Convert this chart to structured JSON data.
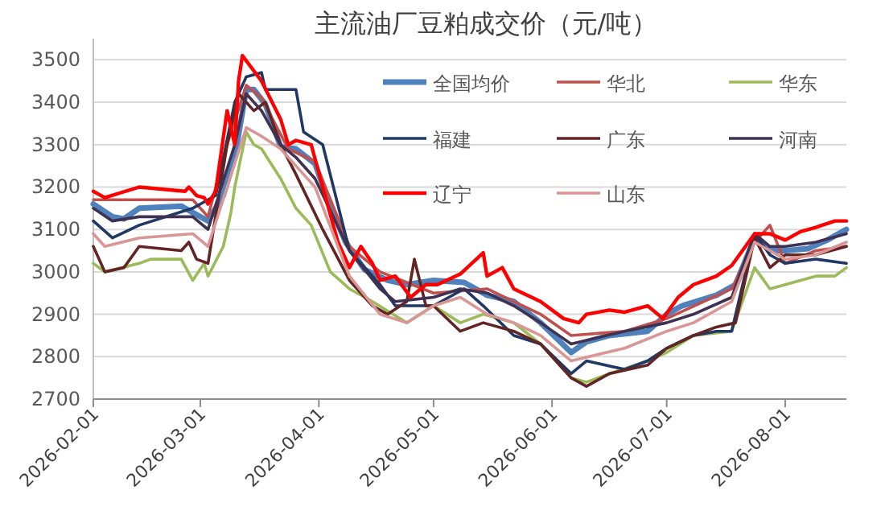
{
  "chart_data": {
    "type": "line",
    "title": "主流油厂豆粕成交价（元/吨）",
    "xlim": [
      "2026-02-01",
      "2026-08-17"
    ],
    "xticks": [
      "2026-02-01",
      "2026-03-01",
      "2026-04-01",
      "2026-05-01",
      "2026-06-01",
      "2026-07-01",
      "2026-08-01"
    ],
    "ylim": [
      2700,
      3550
    ],
    "yticks": [
      2700,
      2800,
      2900,
      3000,
      3100,
      3200,
      3300,
      3400,
      3500
    ],
    "grid": "y",
    "legend": "top right",
    "marker": "none",
    "line_style": "solid",
    "series": [
      {
        "name": "全国均价",
        "color": "#4f81bd",
        "x": [
          "2026-02-01",
          "2026-02-06",
          "2026-02-09",
          "2026-02-13",
          "2026-02-24",
          "2026-02-27",
          "2026-03-03",
          "2026-03-07",
          "2026-03-10",
          "2026-03-13",
          "2026-03-15",
          "2026-03-18",
          "2026-03-22",
          "2026-03-26",
          "2026-03-31",
          "2026-04-04",
          "2026-04-08",
          "2026-04-13",
          "2026-04-19",
          "2026-04-24",
          "2026-05-01",
          "2026-05-09",
          "2026-05-15",
          "2026-05-22",
          "2026-05-29",
          "2026-06-06",
          "2026-06-10",
          "2026-06-16",
          "2026-06-26",
          "2026-07-01",
          "2026-07-05",
          "2026-07-14",
          "2026-07-19",
          "2026-07-24",
          "2026-07-28",
          "2026-08-01",
          "2026-08-07",
          "2026-08-12",
          "2026-08-17"
        ],
        "values": [
          3160,
          3130,
          3125,
          3150,
          3155,
          3140,
          3120,
          3180,
          3270,
          3430,
          3430,
          3395,
          3295,
          3290,
          3255,
          3155,
          3070,
          3005,
          2980,
          2970,
          2980,
          2975,
          2945,
          2930,
          2880,
          2810,
          2835,
          2850,
          2860,
          2900,
          2920,
          2945,
          2970,
          3080,
          3050,
          3050,
          3055,
          3075,
          3100
        ]
      },
      {
        "name": "华北",
        "color": "#c0504d",
        "x": [
          "2026-02-01",
          "2026-02-13",
          "2026-02-27",
          "2026-03-03",
          "2026-03-08",
          "2026-03-13",
          "2026-03-17",
          "2026-03-24",
          "2026-03-31",
          "2026-04-09",
          "2026-04-17",
          "2026-05-01",
          "2026-05-15",
          "2026-05-29",
          "2026-06-06",
          "2026-06-20",
          "2026-07-01",
          "2026-07-18",
          "2026-07-24",
          "2026-07-28",
          "2026-08-01",
          "2026-08-09",
          "2026-08-17"
        ],
        "values": [
          3170,
          3170,
          3170,
          3130,
          3300,
          3440,
          3410,
          3290,
          3260,
          3060,
          3000,
          2950,
          2960,
          2900,
          2850,
          2860,
          2890,
          2960,
          3070,
          3110,
          3020,
          3050,
          3060
        ]
      },
      {
        "name": "华东",
        "color": "#9bbb59",
        "x": [
          "2026-02-01",
          "2026-02-04",
          "2026-02-13",
          "2026-02-16",
          "2026-02-24",
          "2026-02-27",
          "2026-03-02",
          "2026-03-03",
          "2026-03-07",
          "2026-03-09",
          "2026-03-10",
          "2026-03-13",
          "2026-03-15",
          "2026-03-17",
          "2026-03-22",
          "2026-03-26",
          "2026-03-30",
          "2026-04-04",
          "2026-04-09",
          "2026-04-15",
          "2026-04-24",
          "2026-05-01",
          "2026-05-08",
          "2026-05-14",
          "2026-05-22",
          "2026-05-29",
          "2026-06-06",
          "2026-06-10",
          "2026-06-16",
          "2026-06-26",
          "2026-07-01",
          "2026-07-08",
          "2026-07-18",
          "2026-07-24",
          "2026-07-28",
          "2026-08-01",
          "2026-08-09",
          "2026-08-14",
          "2026-08-17"
        ],
        "values": [
          3020,
          3000,
          3020,
          3030,
          3030,
          2980,
          3020,
          2990,
          3060,
          3140,
          3200,
          3330,
          3300,
          3290,
          3220,
          3150,
          3110,
          3000,
          2960,
          2930,
          2880,
          2920,
          2880,
          2900,
          2880,
          2830,
          2750,
          2740,
          2760,
          2790,
          2810,
          2850,
          2860,
          3010,
          2960,
          2970,
          2990,
          2990,
          3010
        ]
      },
      {
        "name": "福建",
        "color": "#1f3864",
        "x": [
          "2026-02-01",
          "2026-02-06",
          "2026-02-13",
          "2026-02-27",
          "2026-03-05",
          "2026-03-10",
          "2026-03-13",
          "2026-03-17",
          "2026-03-18",
          "2026-03-26",
          "2026-03-28",
          "2026-04-02",
          "2026-04-09",
          "2026-04-17",
          "2026-04-21",
          "2026-05-01",
          "2026-05-09",
          "2026-05-14",
          "2026-05-22",
          "2026-05-29",
          "2026-06-06",
          "2026-06-10",
          "2026-06-20",
          "2026-06-26",
          "2026-07-01",
          "2026-07-08",
          "2026-07-14",
          "2026-07-18",
          "2026-07-24",
          "2026-07-28",
          "2026-08-01",
          "2026-08-09",
          "2026-08-17"
        ],
        "values": [
          3120,
          3080,
          3110,
          3150,
          3180,
          3400,
          3460,
          3470,
          3430,
          3430,
          3330,
          3300,
          3050,
          2970,
          2920,
          2920,
          2960,
          2920,
          2850,
          2830,
          2760,
          2790,
          2770,
          2790,
          2820,
          2850,
          2860,
          2860,
          3090,
          3040,
          3020,
          3030,
          3020
        ]
      },
      {
        "name": "广东",
        "color": "#632523",
        "x": [
          "2026-02-01",
          "2026-02-04",
          "2026-02-09",
          "2026-02-13",
          "2026-02-24",
          "2026-02-26",
          "2026-02-28",
          "2026-03-03",
          "2026-03-08",
          "2026-03-11",
          "2026-03-15",
          "2026-03-18",
          "2026-03-22",
          "2026-03-26",
          "2026-04-02",
          "2026-04-09",
          "2026-04-15",
          "2026-04-19",
          "2026-04-24",
          "2026-04-26",
          "2026-04-29",
          "2026-05-01",
          "2026-05-08",
          "2026-05-14",
          "2026-05-22",
          "2026-05-29",
          "2026-06-06",
          "2026-06-10",
          "2026-06-16",
          "2026-06-26",
          "2026-07-01",
          "2026-07-08",
          "2026-07-14",
          "2026-07-19",
          "2026-07-24",
          "2026-07-28",
          "2026-08-01",
          "2026-08-09",
          "2026-08-17"
        ],
        "values": [
          3060,
          3000,
          3010,
          3060,
          3050,
          3070,
          3030,
          3020,
          3300,
          3420,
          3380,
          3400,
          3300,
          3230,
          3100,
          2980,
          2920,
          2900,
          2930,
          3030,
          2920,
          2920,
          2860,
          2880,
          2860,
          2830,
          2750,
          2730,
          2760,
          2780,
          2820,
          2850,
          2870,
          2880,
          3080,
          3010,
          3040,
          3040,
          3060
        ]
      },
      {
        "name": "河南",
        "color": "#3f3151",
        "x": [
          "2026-02-01",
          "2026-02-06",
          "2026-02-13",
          "2026-02-27",
          "2026-03-03",
          "2026-03-10",
          "2026-03-13",
          "2026-03-17",
          "2026-03-22",
          "2026-03-26",
          "2026-03-31",
          "2026-04-09",
          "2026-04-17",
          "2026-04-21",
          "2026-05-01",
          "2026-05-08",
          "2026-05-15",
          "2026-05-22",
          "2026-05-29",
          "2026-06-06",
          "2026-06-20",
          "2026-07-01",
          "2026-07-08",
          "2026-07-18",
          "2026-07-24",
          "2026-07-28",
          "2026-08-01",
          "2026-08-09",
          "2026-08-17"
        ],
        "values": [
          3150,
          3120,
          3130,
          3130,
          3100,
          3300,
          3420,
          3380,
          3300,
          3270,
          3220,
          3050,
          2960,
          2930,
          2940,
          2960,
          2950,
          2920,
          2880,
          2830,
          2860,
          2880,
          2900,
          2940,
          3090,
          3060,
          3060,
          3070,
          3090
        ]
      },
      {
        "name": "辽宁",
        "color": "#ff0000",
        "x": [
          "2026-02-01",
          "2026-02-04",
          "2026-02-13",
          "2026-02-25",
          "2026-02-26",
          "2026-02-28",
          "2026-03-02",
          "2026-03-03",
          "2026-03-05",
          "2026-03-08",
          "2026-03-10",
          "2026-03-11",
          "2026-03-12",
          "2026-03-17",
          "2026-03-22",
          "2026-03-24",
          "2026-03-26",
          "2026-03-30",
          "2026-04-02",
          "2026-04-06",
          "2026-04-09",
          "2026-04-12",
          "2026-04-15",
          "2026-04-17",
          "2026-04-21",
          "2026-04-25",
          "2026-04-29",
          "2026-05-02",
          "2026-05-08",
          "2026-05-14",
          "2026-05-15",
          "2026-05-19",
          "2026-05-22",
          "2026-05-29",
          "2026-06-04",
          "2026-06-08",
          "2026-06-10",
          "2026-06-16",
          "2026-06-20",
          "2026-06-26",
          "2026-06-30",
          "2026-07-04",
          "2026-07-08",
          "2026-07-14",
          "2026-07-18",
          "2026-07-24",
          "2026-07-28",
          "2026-08-01",
          "2026-08-05",
          "2026-08-09",
          "2026-08-14",
          "2026-08-17"
        ],
        "values": [
          3190,
          3175,
          3200,
          3190,
          3200,
          3180,
          3175,
          3160,
          3190,
          3380,
          3300,
          3450,
          3510,
          3450,
          3360,
          3300,
          3310,
          3300,
          3200,
          3070,
          3010,
          3060,
          3020,
          2980,
          2990,
          2940,
          2970,
          2970,
          2995,
          3045,
          2990,
          3010,
          2960,
          2930,
          2890,
          2880,
          2900,
          2910,
          2905,
          2920,
          2890,
          2940,
          2970,
          2990,
          3015,
          3090,
          3090,
          3075,
          3095,
          3105,
          3120,
          3120
        ]
      },
      {
        "name": "山东",
        "color": "#d99694",
        "x": [
          "2026-02-01",
          "2026-02-04",
          "2026-02-13",
          "2026-02-27",
          "2026-03-03",
          "2026-03-08",
          "2026-03-13",
          "2026-03-17",
          "2026-03-22",
          "2026-03-26",
          "2026-03-31",
          "2026-04-09",
          "2026-04-17",
          "2026-04-24",
          "2026-05-01",
          "2026-05-08",
          "2026-05-15",
          "2026-05-22",
          "2026-05-29",
          "2026-06-06",
          "2026-06-20",
          "2026-07-01",
          "2026-07-08",
          "2026-07-18",
          "2026-07-24",
          "2026-07-28",
          "2026-08-01",
          "2026-08-09",
          "2026-08-17"
        ],
        "values": [
          3090,
          3060,
          3080,
          3090,
          3060,
          3200,
          3340,
          3320,
          3290,
          3250,
          3200,
          2990,
          2900,
          2880,
          2920,
          2940,
          2900,
          2880,
          2850,
          2790,
          2820,
          2860,
          2880,
          2930,
          3070,
          3050,
          3030,
          3040,
          3070
        ]
      }
    ]
  }
}
